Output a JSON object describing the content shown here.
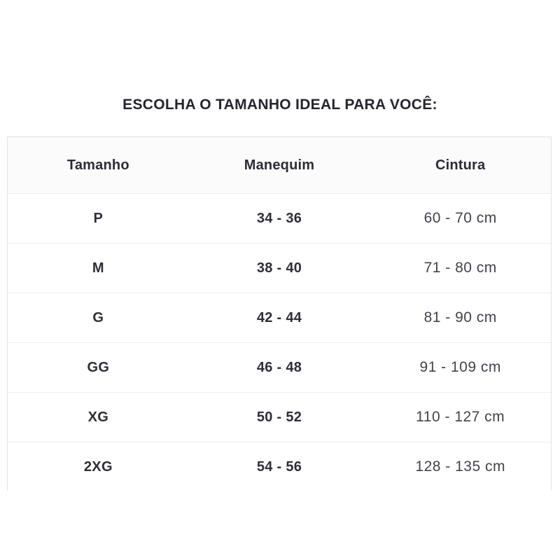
{
  "chart_data": {
    "type": "table",
    "title": "ESCOLHA O TAMANHO IDEAL PARA VOCÊ:",
    "columns": [
      "Tamanho",
      "Manequim",
      "Cintura"
    ],
    "rows": [
      [
        "P",
        "34 - 36",
        "60 - 70 cm"
      ],
      [
        "M",
        "38 - 40",
        "71 - 80 cm"
      ],
      [
        "G",
        "42 - 44",
        "81 - 90 cm"
      ],
      [
        "GG",
        "46 - 48",
        "91 - 109 cm"
      ],
      [
        "XG",
        "50 - 52",
        "110 - 127 cm"
      ],
      [
        "2XG",
        "54 - 56",
        "128 - 135 cm"
      ]
    ],
    "layout": {
      "legend": "none",
      "grid": "horizontal-separators-only",
      "columns_equal_width": true
    }
  },
  "colors": {
    "background": "#ffffff",
    "text_bold": "#2e2e38",
    "text_light": "#42424d",
    "table_border": "#e3e3e6",
    "row_separator": "#eeeef1",
    "header_background": "#fbfbfc"
  }
}
